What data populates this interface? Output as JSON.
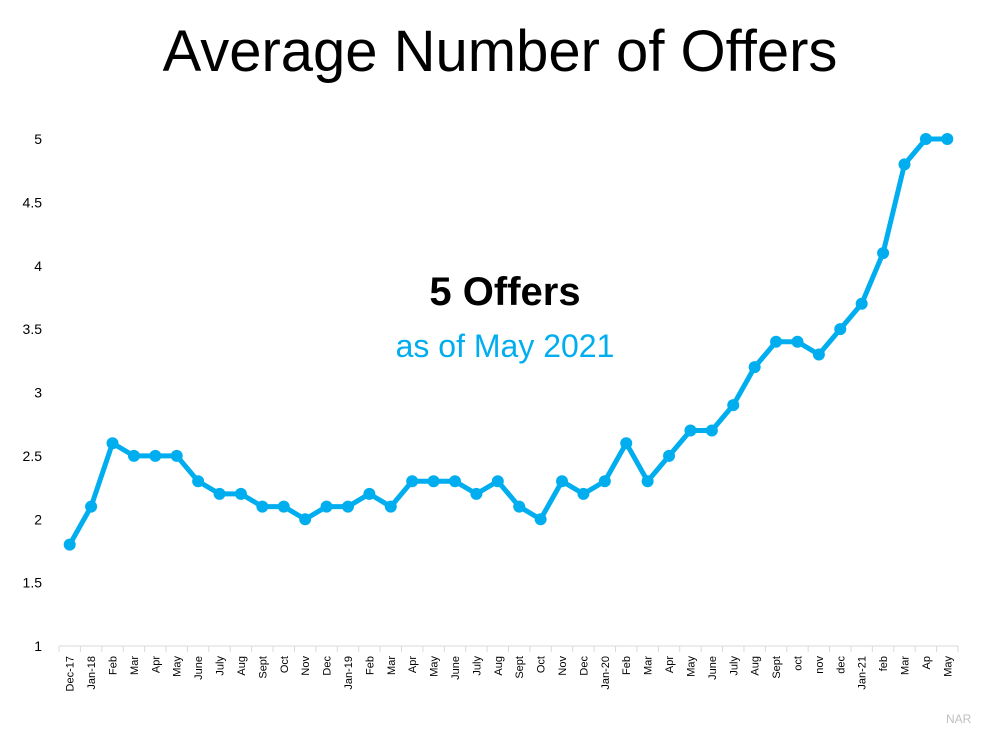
{
  "chart_data": {
    "type": "line",
    "title": "Average Number of Offers",
    "annotation": {
      "headline": "5 Offers",
      "subtitle": "as of May 2021"
    },
    "source": "NAR",
    "color": "#00aeef",
    "ylim": [
      1,
      5
    ],
    "yticks": [
      "1",
      "1.5",
      "2",
      "2.5",
      "3",
      "3.5",
      "4",
      "4.5",
      "5"
    ],
    "grid": false,
    "categories": [
      "Dec-17",
      "Jan-18",
      "Feb",
      "Mar",
      "Apr",
      "May",
      "June",
      "July",
      "Aug",
      "Sept",
      "Oct",
      "Nov",
      "Dec",
      "Jan-19",
      "Feb",
      "Mar",
      "Apr",
      "May",
      "June",
      "July",
      "Aug",
      "Sept",
      "Oct",
      "Nov",
      "Dec",
      "Jan-20",
      "Feb",
      "Mar",
      "Apr",
      "May",
      "June",
      "July",
      "Aug",
      "Sept",
      "oct",
      "nov",
      "dec",
      "Jan-21",
      "feb",
      "Mar",
      "Ap",
      "May"
    ],
    "values": [
      1.8,
      2.1,
      2.6,
      2.5,
      2.5,
      2.5,
      2.3,
      2.2,
      2.2,
      2.1,
      2.1,
      2.0,
      2.1,
      2.1,
      2.2,
      2.1,
      2.3,
      2.3,
      2.3,
      2.2,
      2.3,
      2.1,
      2.0,
      2.3,
      2.2,
      2.3,
      2.6,
      2.3,
      2.5,
      2.7,
      2.7,
      2.9,
      3.2,
      3.4,
      3.4,
      3.3,
      3.5,
      3.7,
      4.1,
      4.8,
      5.0,
      5.0
    ]
  }
}
